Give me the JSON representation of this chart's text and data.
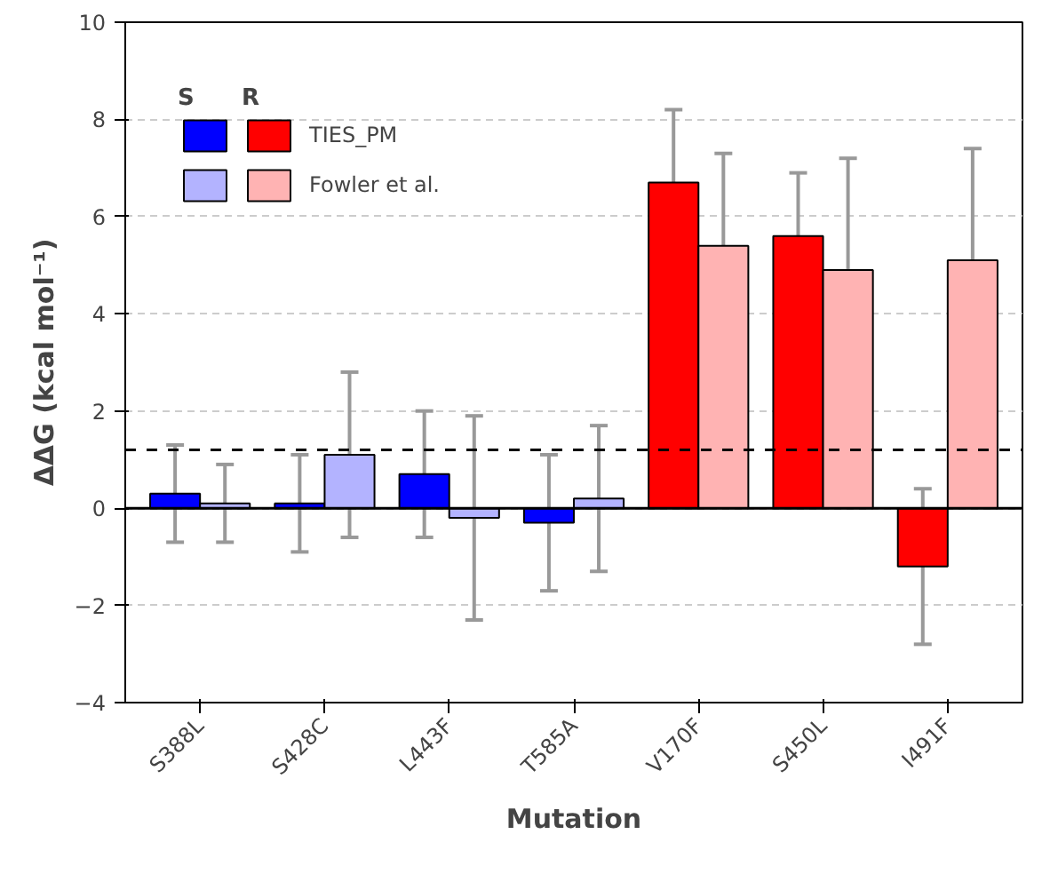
{
  "chart_data": {
    "type": "bar",
    "xlabel": "Mutation",
    "ylabel": "ΔΔG (kcal mol⁻¹)",
    "categories": [
      "S388L",
      "S428C",
      "L443F",
      "T585A",
      "V170F",
      "S450L",
      "I491F"
    ],
    "series": [
      {
        "name": "TIES_PM",
        "colors": [
          "#0000ff",
          "#0000ff",
          "#0000ff",
          "#0000ff",
          "#ff0000",
          "#ff0000",
          "#ff0000"
        ],
        "values": [
          0.3,
          0.1,
          0.7,
          -0.3,
          6.7,
          5.6,
          -1.2
        ],
        "errors": [
          1.0,
          1.0,
          1.3,
          1.4,
          1.5,
          1.3,
          1.6
        ]
      },
      {
        "name": "Fowler et al.",
        "colors": [
          "#b3b3ff",
          "#b3b3ff",
          "#b3b3ff",
          "#b3b3ff",
          "#ffb3b3",
          "#ffb3b3",
          "#ffb3b3"
        ],
        "values": [
          0.1,
          1.1,
          -0.2,
          0.2,
          5.4,
          4.9,
          5.1
        ],
        "errors": [
          0.8,
          1.7,
          2.1,
          1.5,
          1.9,
          2.3,
          2.3
        ]
      }
    ],
    "ylim": [
      -4,
      10
    ],
    "yticks": [
      -4,
      -2,
      0,
      2,
      4,
      6,
      8,
      10
    ],
    "grid": "y",
    "legend": "top left",
    "annotations": [
      "S",
      "R"
    ],
    "ref_lines": [
      {
        "axis": "y",
        "value": 1.2,
        "color": "#000000",
        "line_style": "dashed"
      },
      {
        "axis": "y",
        "value": 0,
        "color": "#000000",
        "line_style": "solid"
      }
    ]
  }
}
